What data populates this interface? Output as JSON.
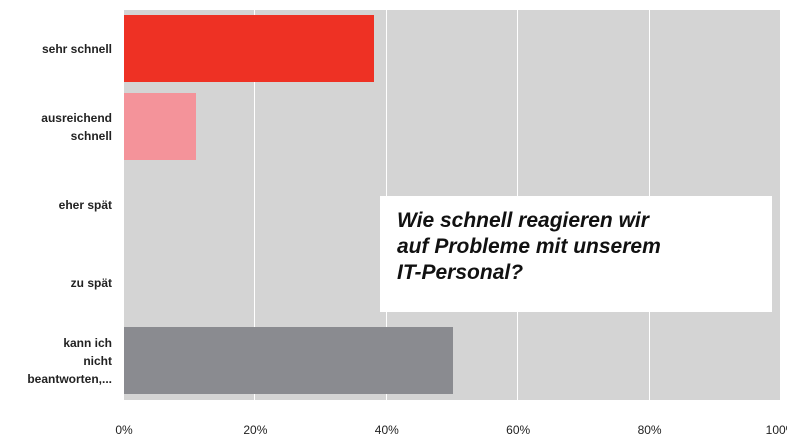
{
  "chart_data": {
    "type": "bar",
    "orientation": "horizontal",
    "title": "Wie schnell reagieren wir\nauf Probleme mit unserem\nIT-Personal?",
    "categories": [
      "sehr schnell",
      "ausreichend\nschnell",
      "eher spät",
      "zu spät",
      "kann ich\nnicht\nbeantworten,..."
    ],
    "values": [
      38,
      11,
      0,
      0,
      50
    ],
    "colors": [
      "#ee3124",
      "#f4939a",
      "#f4939a",
      "#f4939a",
      "#8a8b90"
    ],
    "xlim": [
      0,
      100
    ],
    "xticks": [
      {
        "value": 0,
        "label": "0%"
      },
      {
        "value": 20,
        "label": "20%"
      },
      {
        "value": 40,
        "label": "40%"
      },
      {
        "value": 60,
        "label": "60%"
      },
      {
        "value": 80,
        "label": "80%"
      },
      {
        "value": 100,
        "label": "100%"
      }
    ],
    "grid": true
  }
}
